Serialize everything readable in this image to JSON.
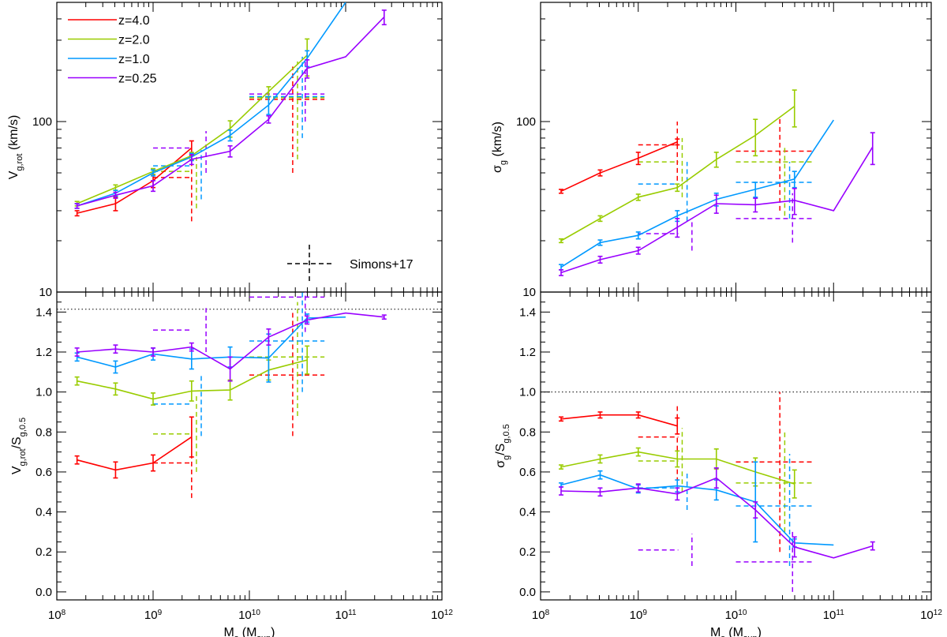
{
  "figure": {
    "x_label": "M",
    "x_label_sub": "s",
    "x_label_unit_pre": " (M",
    "x_label_unit_sub": "sun",
    "x_label_unit_post": ")",
    "x_ticks": [
      8,
      9,
      10,
      11,
      12
    ],
    "x_tick_base": "10"
  },
  "colors": {
    "z4": "#ff0000",
    "z2": "#99cc00",
    "z1": "#0099ff",
    "z025": "#9900ff",
    "ref": "#000000"
  },
  "chart_data": [
    {
      "panel": "top-left",
      "type": "line",
      "yscale": "log",
      "ylim": [
        10,
        500
      ],
      "xlim": [
        8,
        12
      ],
      "ylabel": "V",
      "ylabel_sub": "g,rot",
      "ylabel_post": " (km/s)",
      "y_ticks": [
        {
          "v": 10,
          "label": "10"
        },
        {
          "v": 100,
          "label": "100"
        }
      ],
      "legend": {
        "placement": "top-left",
        "entries": [
          {
            "label": "z=4.0",
            "color_key": "z4"
          },
          {
            "label": "z=2.0",
            "color_key": "z2"
          },
          {
            "label": "z=1.0",
            "color_key": "z1"
          },
          {
            "label": "z=0.25",
            "color_key": "z025"
          }
        ]
      },
      "annotation": {
        "label": "Simons+17",
        "placement": "bottom-right"
      },
      "series": [
        {
          "name": "z=4.0",
          "color_key": "z4",
          "x": [
            8.21,
            8.61,
            9.0,
            9.4
          ],
          "y": [
            29,
            33,
            45,
            70
          ],
          "err": [
            1,
            3,
            4,
            7
          ]
        },
        {
          "name": "z=2.0",
          "color_key": "z2",
          "x": [
            8.21,
            8.61,
            9.0,
            9.4,
            9.8,
            10.2,
            10.6
          ],
          "y": [
            33,
            41,
            51,
            63,
            91,
            150,
            245
          ],
          "err": [
            1,
            1.5,
            2,
            3,
            10,
            10,
            60
          ]
        },
        {
          "name": "z=1.0",
          "color_key": "z1",
          "x": [
            8.21,
            8.61,
            9.0,
            9.4,
            9.8,
            10.2,
            10.6,
            11.0
          ],
          "y": [
            32,
            38,
            50,
            62,
            83,
            125,
            235,
            500
          ],
          "err": [
            1,
            1.5,
            2,
            3,
            6,
            15,
            25,
            0
          ]
        },
        {
          "name": "z=0.25",
          "color_key": "z025",
          "x": [
            8.21,
            8.61,
            9.0,
            9.4,
            9.8,
            10.2,
            10.6,
            11.0,
            11.4
          ],
          "y": [
            32,
            37,
            42,
            60,
            67,
            103,
            205,
            240,
            410
          ],
          "err": [
            1,
            1.5,
            3,
            4,
            5,
            5,
            25,
            0,
            40
          ]
        }
      ],
      "obs": [
        {
          "color_key": "z4",
          "x": 9.05,
          "x_lo": 9.0,
          "x_hi": 9.41,
          "x_c": 9.4,
          "y": 47,
          "y_lo": 26,
          "y_hi": 58
        },
        {
          "color_key": "z2",
          "x": 9.05,
          "x_lo": 9.0,
          "x_hi": 9.41,
          "x_c": 9.45,
          "y": 51,
          "y_lo": 31,
          "y_hi": 62
        },
        {
          "color_key": "z1",
          "x": 9.05,
          "x_lo": 9.0,
          "x_hi": 9.41,
          "x_c": 9.5,
          "y": 55,
          "y_lo": 35,
          "y_hi": 68
        },
        {
          "color_key": "z025",
          "x": 9.05,
          "x_lo": 9.0,
          "x_hi": 9.41,
          "x_c": 9.55,
          "y": 70,
          "y_lo": 50,
          "y_hi": 88
        },
        {
          "color_key": "z4",
          "x": 10.0,
          "x_lo": 10.0,
          "x_hi": 10.78,
          "x_c": 10.45,
          "y": 135,
          "y_lo": 50,
          "y_hi": 210
        },
        {
          "color_key": "z2",
          "x": 10.0,
          "x_lo": 10.0,
          "x_hi": 10.78,
          "x_c": 10.5,
          "y": 138,
          "y_lo": 60,
          "y_hi": 225
        },
        {
          "color_key": "z1",
          "x": 10.0,
          "x_lo": 10.0,
          "x_hi": 10.78,
          "x_c": 10.55,
          "y": 140,
          "y_lo": 80,
          "y_hi": 240
        },
        {
          "color_key": "z025",
          "x": 10.0,
          "x_lo": 10.0,
          "x_hi": 10.78,
          "x_c": 10.58,
          "y": 145,
          "y_lo": 100,
          "y_hi": 230
        }
      ]
    },
    {
      "panel": "bottom-left",
      "type": "line",
      "yscale": "linear",
      "ylim": [
        -0.04,
        1.5
      ],
      "xlim": [
        8,
        12
      ],
      "ylabel": "V",
      "ylabel_sub": "g,rot",
      "ylabel_post": "/S",
      "ylabel_sub2": "g,0.5",
      "y_ticks": [
        {
          "v": 0.0,
          "label": "0.0"
        },
        {
          "v": 0.2,
          "label": "0.2"
        },
        {
          "v": 0.4,
          "label": "0.4"
        },
        {
          "v": 0.6,
          "label": "0.6"
        },
        {
          "v": 0.8,
          "label": "0.8"
        },
        {
          "v": 1.0,
          "label": "1.0"
        },
        {
          "v": 1.2,
          "label": "1.2"
        },
        {
          "v": 1.4,
          "label": "1.4"
        }
      ],
      "reference_line": 1.414,
      "series": [
        {
          "name": "z=4.0",
          "color_key": "z4",
          "x": [
            8.21,
            8.61,
            9.0,
            9.4
          ],
          "y": [
            0.66,
            0.61,
            0.645,
            0.775
          ],
          "err": [
            0.02,
            0.04,
            0.04,
            0.1
          ]
        },
        {
          "name": "z=2.0",
          "color_key": "z2",
          "x": [
            8.21,
            8.61,
            9.0,
            9.4,
            9.8,
            10.2,
            10.6
          ],
          "y": [
            1.055,
            1.015,
            0.965,
            1.005,
            1.01,
            1.11,
            1.16
          ],
          "err": [
            0.02,
            0.03,
            0.03,
            0.05,
            0.05,
            0.05,
            0.07
          ]
        },
        {
          "name": "z=1.0",
          "color_key": "z1",
          "x": [
            8.21,
            8.61,
            9.0,
            9.4,
            9.8,
            10.2,
            10.6,
            11.0
          ],
          "y": [
            1.175,
            1.125,
            1.19,
            1.165,
            1.175,
            1.17,
            1.37,
            1.375
          ],
          "err": [
            0.02,
            0.03,
            0.03,
            0.05,
            0.05,
            0.12,
            0.02,
            0
          ]
        },
        {
          "name": "z=0.25",
          "color_key": "z025",
          "x": [
            8.21,
            8.61,
            9.0,
            9.4,
            9.8,
            10.2,
            10.6,
            11.0,
            11.4
          ],
          "y": [
            1.2,
            1.215,
            1.2,
            1.225,
            1.115,
            1.275,
            1.36,
            1.395,
            1.375
          ],
          "err": [
            0.02,
            0.02,
            0.02,
            0.02,
            0.06,
            0.04,
            0.02,
            0,
            0.01
          ]
        }
      ],
      "obs": [
        {
          "color_key": "z4",
          "x": 9.05,
          "x_lo": 9.0,
          "x_hi": 9.41,
          "x_c": 9.4,
          "y": 0.645,
          "y_lo": 0.47,
          "y_hi": 0.82
        },
        {
          "color_key": "z2",
          "x": 9.05,
          "x_lo": 9.0,
          "x_hi": 9.41,
          "x_c": 9.45,
          "y": 0.79,
          "y_lo": 0.6,
          "y_hi": 0.98
        },
        {
          "color_key": "z1",
          "x": 9.05,
          "x_lo": 9.0,
          "x_hi": 9.41,
          "x_c": 9.5,
          "y": 0.94,
          "y_lo": 0.78,
          "y_hi": 1.08
        },
        {
          "color_key": "z025",
          "x": 9.05,
          "x_lo": 9.0,
          "x_hi": 9.41,
          "x_c": 9.55,
          "y": 1.31,
          "y_lo": 1.2,
          "y_hi": 1.42
        },
        {
          "color_key": "z4",
          "x": 10.0,
          "x_lo": 10.0,
          "x_hi": 10.78,
          "x_c": 10.45,
          "y": 1.085,
          "y_lo": 0.78,
          "y_hi": 1.4
        },
        {
          "color_key": "z2",
          "x": 10.0,
          "x_lo": 10.0,
          "x_hi": 10.78,
          "x_c": 10.5,
          "y": 1.175,
          "y_lo": 0.88,
          "y_hi": 1.45
        },
        {
          "color_key": "z1",
          "x": 10.0,
          "x_lo": 10.0,
          "x_hi": 10.78,
          "x_c": 10.55,
          "y": 1.255,
          "y_lo": 1.0,
          "y_hi": 1.5
        },
        {
          "color_key": "z025",
          "x": 10.0,
          "x_lo": 10.0,
          "x_hi": 10.78,
          "x_c": 10.58,
          "y": 1.475,
          "y_lo": 1.3,
          "y_hi": 1.5
        }
      ]
    },
    {
      "panel": "top-right",
      "type": "line",
      "yscale": "log",
      "ylim": [
        10,
        500
      ],
      "xlim": [
        8,
        12
      ],
      "ylabel": "σ",
      "ylabel_sub": "g",
      "ylabel_post": " (km/s)",
      "y_ticks": [
        {
          "v": 10,
          "label": "10"
        },
        {
          "v": 100,
          "label": "100"
        }
      ],
      "series": [
        {
          "name": "z=4.0",
          "color_key": "z4",
          "x": [
            8.21,
            8.61,
            9.0,
            9.4
          ],
          "y": [
            39,
            50,
            61,
            76
          ],
          "err": [
            1,
            2,
            5,
            3
          ]
        },
        {
          "name": "z=2.0",
          "color_key": "z2",
          "x": [
            8.21,
            8.61,
            9.0,
            9.4,
            9.8,
            10.2,
            10.6
          ],
          "y": [
            20,
            27,
            36,
            41,
            60,
            83,
            123
          ],
          "err": [
            0.5,
            1,
            1.5,
            2,
            6,
            20,
            30
          ]
        },
        {
          "name": "z=1.0",
          "color_key": "z1",
          "x": [
            8.21,
            8.61,
            9.0,
            9.4,
            9.8,
            10.2,
            10.6,
            11.0
          ],
          "y": [
            14,
            19.5,
            21.5,
            28,
            35,
            40,
            46,
            102
          ],
          "err": [
            0.5,
            0.7,
            1,
            2,
            3,
            4,
            5,
            0
          ]
        },
        {
          "name": "z=0.25",
          "color_key": "z025",
          "x": [
            8.21,
            8.61,
            9.0,
            9.4,
            9.8,
            10.2,
            10.6,
            11.0,
            11.4
          ],
          "y": [
            13,
            15.5,
            17.5,
            24,
            33,
            32.5,
            34.5,
            30,
            71
          ],
          "err": [
            0.5,
            0.7,
            0.8,
            3,
            4,
            3,
            6,
            0,
            15
          ]
        }
      ],
      "obs": [
        {
          "color_key": "z4",
          "x": 9.05,
          "x_lo": 9.0,
          "x_hi": 9.41,
          "x_c": 9.4,
          "y": 73,
          "y_lo": 45,
          "y_hi": 100
        },
        {
          "color_key": "z2",
          "x": 9.05,
          "x_lo": 9.0,
          "x_hi": 9.41,
          "x_c": 9.45,
          "y": 58,
          "y_lo": 36,
          "y_hi": 80
        },
        {
          "color_key": "z1",
          "x": 9.05,
          "x_lo": 9.0,
          "x_hi": 9.41,
          "x_c": 9.5,
          "y": 43,
          "y_lo": 26,
          "y_hi": 58
        },
        {
          "color_key": "z025",
          "x": 9.05,
          "x_lo": 9.0,
          "x_hi": 9.41,
          "x_c": 9.55,
          "y": 22,
          "y_lo": 17.5,
          "y_hi": 27
        },
        {
          "color_key": "z4",
          "x": 10.0,
          "x_lo": 10.0,
          "x_hi": 10.78,
          "x_c": 10.45,
          "y": 67,
          "y_lo": 30,
          "y_hi": 105
        },
        {
          "color_key": "z2",
          "x": 10.0,
          "x_lo": 10.0,
          "x_hi": 10.78,
          "x_c": 10.5,
          "y": 58,
          "y_lo": 28,
          "y_hi": 72
        },
        {
          "color_key": "z1",
          "x": 10.0,
          "x_lo": 10.0,
          "x_hi": 10.78,
          "x_c": 10.55,
          "y": 44,
          "y_lo": 27,
          "y_hi": 58
        },
        {
          "color_key": "z025",
          "x": 10.0,
          "x_lo": 10.0,
          "x_hi": 10.78,
          "x_c": 10.58,
          "y": 27,
          "y_lo": 19.5,
          "y_hi": 38
        }
      ]
    },
    {
      "panel": "bottom-right",
      "type": "line",
      "yscale": "linear",
      "ylim": [
        -0.04,
        1.5
      ],
      "xlim": [
        8,
        12
      ],
      "ylabel": "σ",
      "ylabel_sub": "g",
      "ylabel_post": "/S",
      "ylabel_sub2": "g,0.5",
      "y_ticks": [
        {
          "v": 0.0,
          "label": "0.0"
        },
        {
          "v": 0.2,
          "label": "0.2"
        },
        {
          "v": 0.4,
          "label": "0.4"
        },
        {
          "v": 0.6,
          "label": "0.6"
        },
        {
          "v": 0.8,
          "label": "0.8"
        },
        {
          "v": 1.0,
          "label": "1.0"
        },
        {
          "v": 1.2,
          "label": "1.2"
        },
        {
          "v": 1.4,
          "label": "1.4"
        }
      ],
      "reference_line": 1.0,
      "series": [
        {
          "name": "z=4.0",
          "color_key": "z4",
          "x": [
            8.21,
            8.61,
            9.0,
            9.4
          ],
          "y": [
            0.865,
            0.885,
            0.885,
            0.83
          ],
          "err": [
            0.01,
            0.015,
            0.015,
            0.04
          ]
        },
        {
          "name": "z=2.0",
          "color_key": "z2",
          "x": [
            8.21,
            8.61,
            9.0,
            9.4,
            9.8,
            10.2,
            10.6
          ],
          "y": [
            0.625,
            0.665,
            0.7,
            0.665,
            0.665,
            0.6,
            0.54
          ],
          "err": [
            0.01,
            0.02,
            0.02,
            0.04,
            0.05,
            0.07,
            0.07
          ]
        },
        {
          "name": "z=1.0",
          "color_key": "z1",
          "x": [
            8.21,
            8.61,
            9.0,
            9.4,
            9.8,
            10.2,
            10.6,
            11.0
          ],
          "y": [
            0.535,
            0.585,
            0.515,
            0.53,
            0.51,
            0.45,
            0.245,
            0.235
          ],
          "err": [
            0.01,
            0.02,
            0.02,
            0.03,
            0.05,
            0.2,
            0.02,
            0
          ]
        },
        {
          "name": "z=0.25",
          "color_key": "z025",
          "x": [
            8.21,
            8.61,
            9.0,
            9.4,
            9.8,
            10.2,
            10.6,
            11.0,
            11.4
          ],
          "y": [
            0.505,
            0.5,
            0.52,
            0.49,
            0.57,
            0.41,
            0.225,
            0.17,
            0.23
          ],
          "err": [
            0.02,
            0.02,
            0.02,
            0.03,
            0.05,
            0.04,
            0.05,
            0,
            0.02
          ]
        }
      ],
      "obs": [
        {
          "color_key": "z4",
          "x": 9.05,
          "x_lo": 9.0,
          "x_hi": 9.41,
          "x_c": 9.4,
          "y": 0.775,
          "y_lo": 0.55,
          "y_hi": 0.94
        },
        {
          "color_key": "z2",
          "x": 9.05,
          "x_lo": 9.0,
          "x_hi": 9.41,
          "x_c": 9.45,
          "y": 0.655,
          "y_lo": 0.5,
          "y_hi": 0.82
        },
        {
          "color_key": "z1",
          "x": 9.05,
          "x_lo": 9.0,
          "x_hi": 9.41,
          "x_c": 9.5,
          "y": 0.52,
          "y_lo": 0.41,
          "y_hi": 0.6
        },
        {
          "color_key": "z025",
          "x": 9.05,
          "x_lo": 9.0,
          "x_hi": 9.41,
          "x_c": 9.55,
          "y": 0.21,
          "y_lo": 0.13,
          "y_hi": 0.29
        },
        {
          "color_key": "z4",
          "x": 10.0,
          "x_lo": 10.0,
          "x_hi": 10.78,
          "x_c": 10.45,
          "y": 0.65,
          "y_lo": 0.2,
          "y_hi": 1.0
        },
        {
          "color_key": "z2",
          "x": 10.0,
          "x_lo": 10.0,
          "x_hi": 10.78,
          "x_c": 10.5,
          "y": 0.545,
          "y_lo": 0.3,
          "y_hi": 0.81
        },
        {
          "color_key": "z1",
          "x": 10.0,
          "x_lo": 10.0,
          "x_hi": 10.78,
          "x_c": 10.55,
          "y": 0.43,
          "y_lo": 0.13,
          "y_hi": 0.69
        },
        {
          "color_key": "z025",
          "x": 10.0,
          "x_lo": 10.0,
          "x_hi": 10.78,
          "x_c": 10.58,
          "y": 0.15,
          "y_lo": 0.0,
          "y_hi": 0.3
        }
      ]
    }
  ]
}
